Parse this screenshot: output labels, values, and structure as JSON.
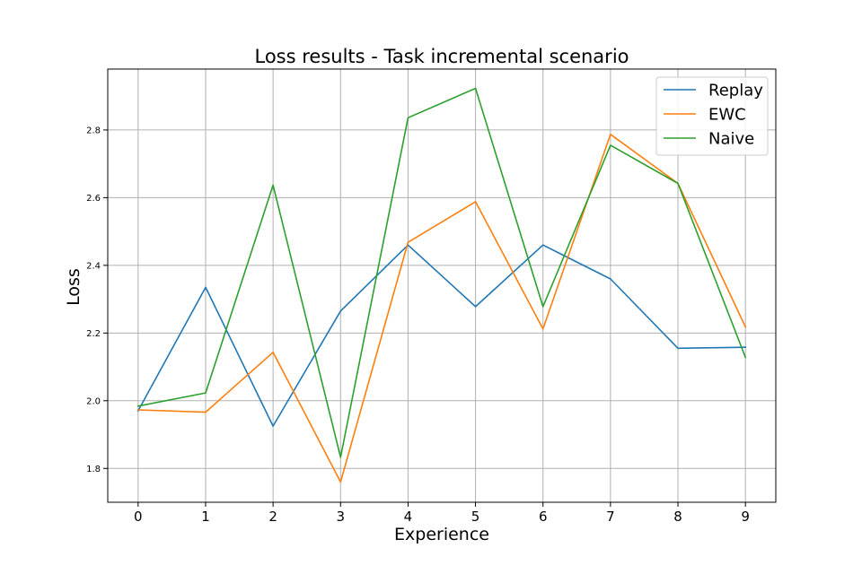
{
  "chart_data": {
    "type": "line",
    "title": "Loss results - Task incremental scenario",
    "xlabel": "Experience",
    "ylabel": "Loss",
    "x": [
      0,
      1,
      2,
      3,
      4,
      5,
      6,
      7,
      8,
      9
    ],
    "xticks": [
      "0",
      "1",
      "2",
      "3",
      "4",
      "5",
      "6",
      "7",
      "8",
      "9"
    ],
    "yticks": [
      "1.8",
      "2.0",
      "2.2",
      "2.4",
      "2.6",
      "2.8"
    ],
    "xlim": [
      -0.45,
      9.45
    ],
    "ylim": [
      1.7,
      2.98
    ],
    "grid": true,
    "legend_position": "top-right",
    "series": [
      {
        "name": "Replay",
        "color": "#1f77b4",
        "values": [
          1.97,
          2.335,
          1.925,
          2.265,
          2.46,
          2.278,
          2.46,
          2.36,
          2.155,
          2.158
        ]
      },
      {
        "name": "EWC",
        "color": "#ff7f0e",
        "values": [
          1.973,
          1.966,
          2.143,
          1.76,
          2.468,
          2.588,
          2.212,
          2.787,
          2.642,
          2.218
        ]
      },
      {
        "name": "Naive",
        "color": "#2ca02c",
        "values": [
          1.984,
          2.023,
          2.637,
          1.833,
          2.836,
          2.923,
          2.278,
          2.755,
          2.642,
          2.128
        ]
      }
    ]
  }
}
